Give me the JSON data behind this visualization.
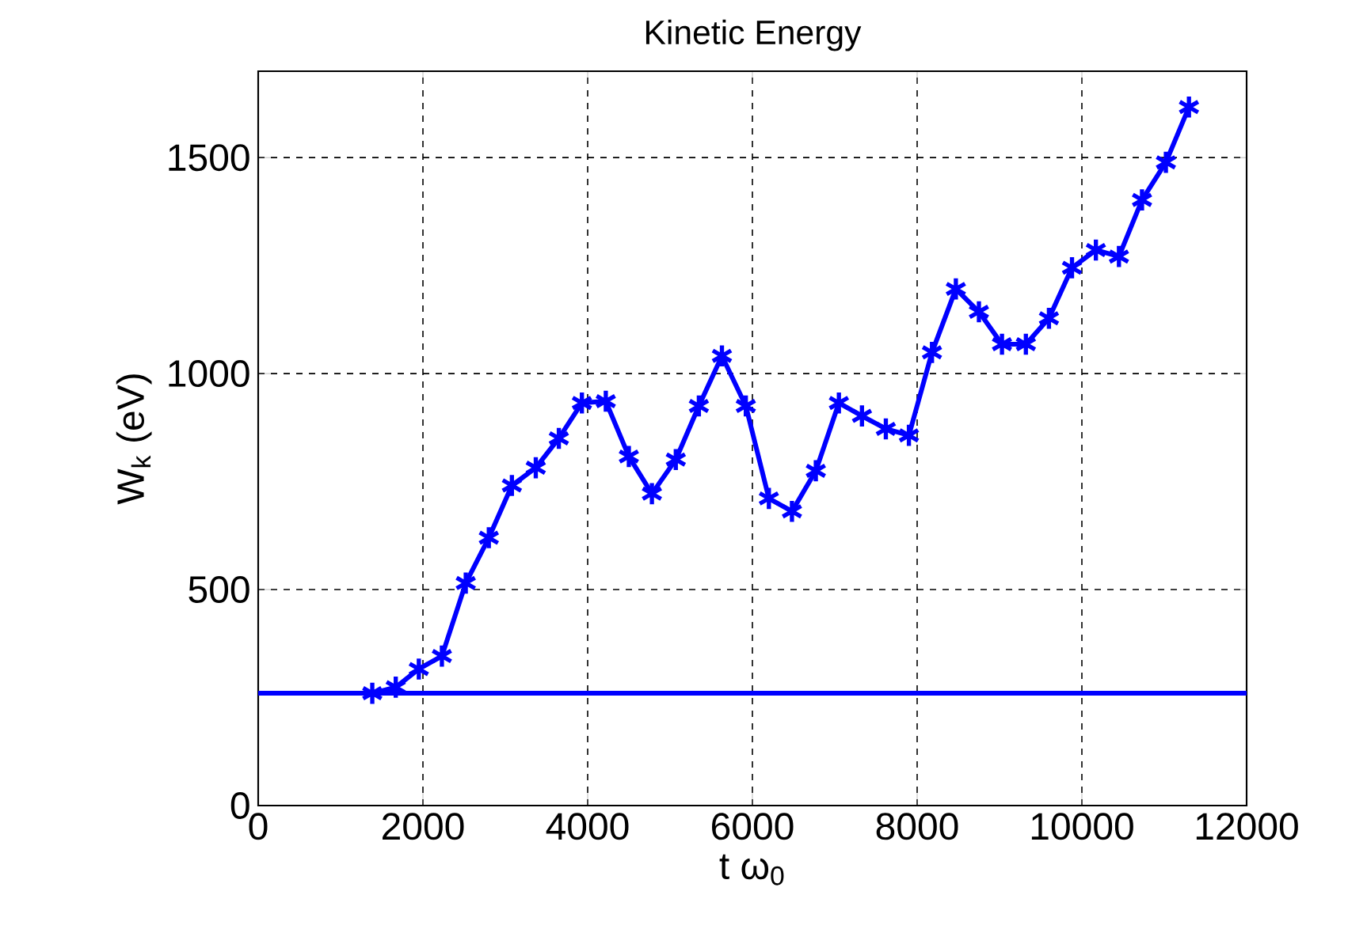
{
  "chart_data": {
    "type": "line",
    "title": "Kinetic Energy",
    "xlabel": "t ω$_{0}$",
    "ylabel": "W$_{k}$ (eV)",
    "x": [
      1385,
      1670,
      1950,
      2230,
      2520,
      2800,
      3080,
      3370,
      3650,
      3930,
      4220,
      4500,
      4780,
      5070,
      5350,
      5630,
      5920,
      6200,
      6480,
      6770,
      7050,
      7330,
      7620,
      7900,
      8180,
      8470,
      8750,
      9030,
      9320,
      9600,
      9880,
      10170,
      10450,
      10730,
      11020,
      11300
    ],
    "series": [
      {
        "color": "#0000ff",
        "values": [
          260,
          274,
          316,
          346,
          515,
          620,
          741,
          782,
          850,
          932,
          936,
          808,
          722,
          801,
          925,
          1041,
          925,
          711,
          681,
          775,
          932,
          902,
          872,
          857,
          1049,
          1196,
          1143,
          1068,
          1068,
          1128,
          1245,
          1286,
          1271,
          1402,
          1489,
          1617
        ]
      }
    ],
    "ref_lines": [
      {
        "axis": "y",
        "value": 260,
        "color": "#0000ff"
      }
    ],
    "xlim": [
      0,
      12000
    ],
    "ylim": [
      0,
      1700
    ],
    "xticks": [
      0,
      2000,
      4000,
      6000,
      8000,
      10000,
      12000
    ],
    "yticks": [
      0,
      500,
      1000,
      1500
    ],
    "grid": true,
    "marker": "cross",
    "line_style": "solid"
  }
}
